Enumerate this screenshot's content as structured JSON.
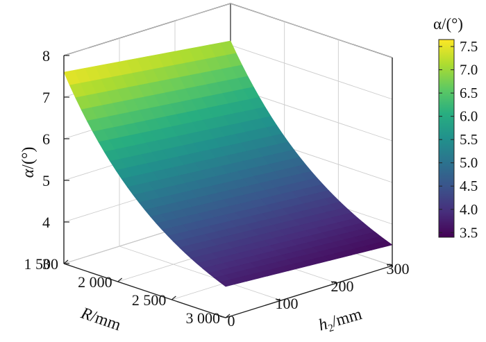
{
  "chart_data": {
    "type": "surface3d",
    "title": "",
    "xlabel": {
      "main": "R",
      "unit": "/mm"
    },
    "ylabel": {
      "main": "h",
      "sub": "2",
      "unit": "/mm"
    },
    "zlabel": {
      "main": "α",
      "unit": "/(°)"
    },
    "x_ticks": [
      "1 500",
      "2 000",
      "2 500",
      "3 000"
    ],
    "x_tick_values": [
      1500,
      2000,
      2500,
      3000
    ],
    "y_ticks": [
      "0",
      "100",
      "200",
      "300"
    ],
    "y_tick_values": [
      0,
      100,
      200,
      300
    ],
    "z_ticks": [
      "3",
      "4",
      "5",
      "6",
      "7",
      "8"
    ],
    "z_tick_values": [
      3,
      4,
      5,
      6,
      7,
      8
    ],
    "xlim": [
      1500,
      3000
    ],
    "ylim": [
      0,
      300
    ],
    "zlim": [
      3,
      8
    ],
    "surface_corners": [
      {
        "R": 1500,
        "h2": 0,
        "alpha": 7.6
      },
      {
        "R": 1500,
        "h2": 300,
        "alpha": 7.1
      },
      {
        "R": 3000,
        "h2": 0,
        "alpha": 3.75
      },
      {
        "R": 3000,
        "h2": 300,
        "alpha": 3.5
      }
    ],
    "colorbar": {
      "title": "α/(°)",
      "ticks": [
        "3.5",
        "4.0",
        "4.5",
        "5.0",
        "5.5",
        "6.0",
        "6.5",
        "7.0",
        "7.5"
      ],
      "tick_values": [
        3.5,
        4.0,
        4.5,
        5.0,
        5.5,
        6.0,
        6.5,
        7.0,
        7.5
      ],
      "range": [
        3.4,
        7.65
      ],
      "colormap": "viridis",
      "colors": [
        "#440154",
        "#472d7b",
        "#3b528b",
        "#2c728e",
        "#21918c",
        "#28ae80",
        "#5ec962",
        "#addc30",
        "#fde725"
      ]
    },
    "grid": true
  }
}
